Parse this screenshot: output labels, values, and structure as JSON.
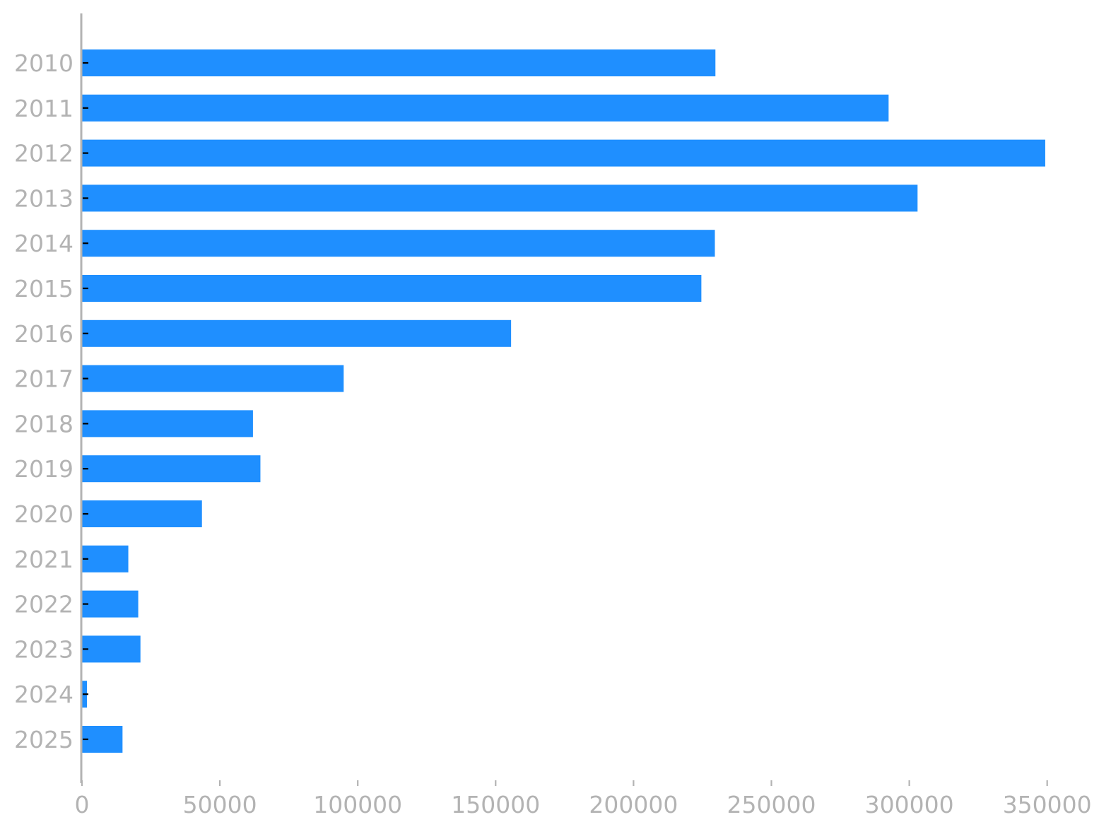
{
  "chart_data": {
    "type": "bar",
    "orientation": "horizontal",
    "categories": [
      "2010",
      "2011",
      "2012",
      "2013",
      "2014",
      "2015",
      "2016",
      "2017",
      "2018",
      "2019",
      "2020",
      "2021",
      "2022",
      "2023",
      "2024",
      "2025"
    ],
    "values": [
      229700,
      292500,
      349300,
      303000,
      229500,
      224600,
      155600,
      94900,
      62000,
      64700,
      43500,
      16800,
      20400,
      21200,
      1800,
      14700
    ],
    "color": "#1f8fff",
    "axis_color": "#b3b3b3",
    "xlim": [
      0,
      357000
    ],
    "xticks": [
      0,
      50000,
      100000,
      150000,
      200000,
      250000,
      300000,
      350000
    ],
    "xtick_labels": [
      "0",
      "50000",
      "100000",
      "150000",
      "200000",
      "250000",
      "300000",
      "350000"
    ],
    "grid": false,
    "title": "",
    "xlabel": "",
    "ylabel": ""
  }
}
